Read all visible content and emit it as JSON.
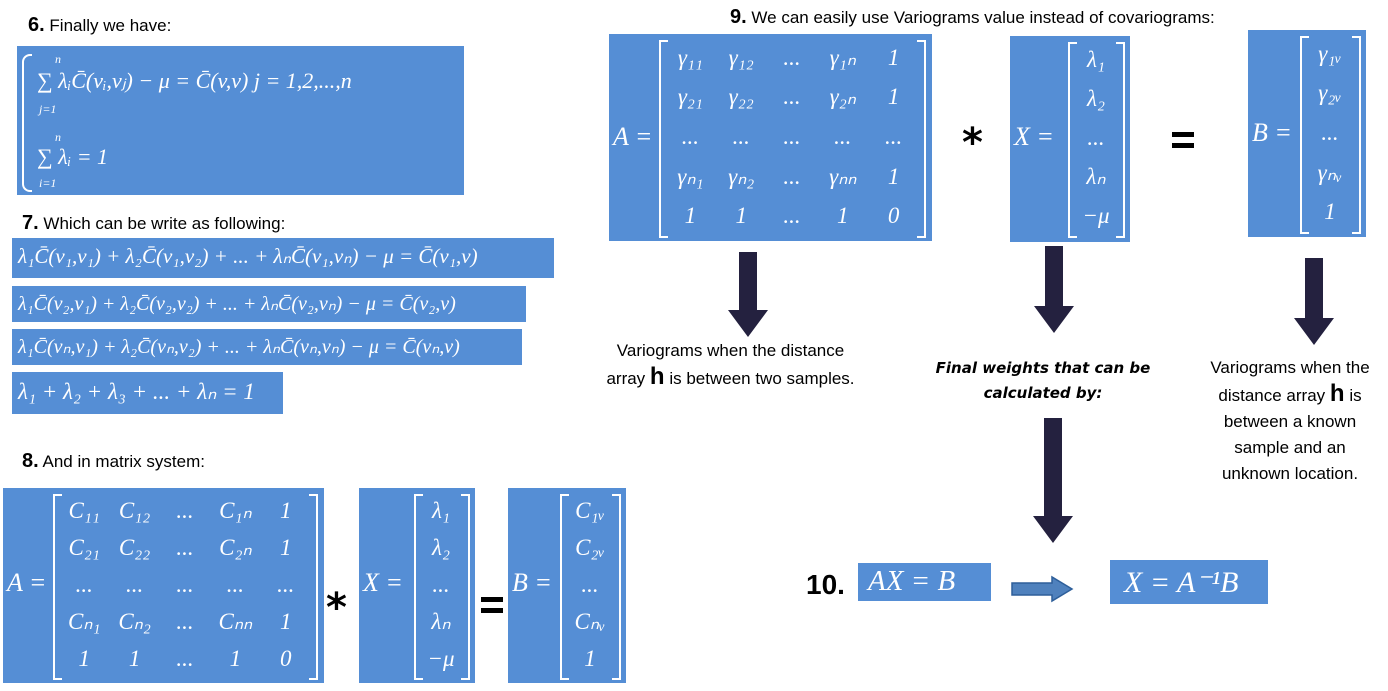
{
  "steps": {
    "s6": {
      "num": "6.",
      "text": "Finally we have:"
    },
    "s7": {
      "num": "7.",
      "text": "Which can be write as following:"
    },
    "s8": {
      "num": "8.",
      "text": "And in matrix system:"
    },
    "s9": {
      "num": "9.",
      "text": "We can easily use Variograms value instead of covariograms:"
    },
    "s10": {
      "num": "10."
    }
  },
  "eq6": {
    "line1": "∑ λᵢC̄(vᵢ,vⱼ) − μ = C̄(v,v)    j = 1,2,...,n",
    "line2": "∑ λᵢ = 1",
    "sum1_top": "n",
    "sum1_bottom": "j=1",
    "sum2_top": "n",
    "sum2_bottom": "i=1"
  },
  "eq7": [
    "λ₁C̄(v₁,v₁) + λ₂C̄(v₁,v₂) + ... + λₙC̄(v₁,vₙ) − μ = C̄(v₁,v)",
    "λ₁C̄(v₂,v₁) + λ₂C̄(v₂,v₂) + ... + λₙC̄(v₂,vₙ) − μ = C̄(v₂,v)",
    "λ₁C̄(vₙ,v₁) + λ₂C̄(vₙ,v₂) + ... + λₙC̄(vₙ,vₙ) − μ = C̄(vₙ,v)",
    "λ₁ + λ₂ + λ₃ + ... + λₙ = 1"
  ],
  "matrix8": {
    "A_label": "A =",
    "A": [
      [
        "C₁₁",
        "C₁₂",
        "...",
        "C₁ₙ",
        "1"
      ],
      [
        "C₂₁",
        "C₂₂",
        "...",
        "C₂ₙ",
        "1"
      ],
      [
        "...",
        "...",
        "...",
        "...",
        "..."
      ],
      [
        "Cₙ₁",
        "Cₙ₂",
        "...",
        "Cₙₙ",
        "1"
      ],
      [
        "1",
        "1",
        "...",
        "1",
        "0"
      ]
    ],
    "X_label": "X =",
    "X": [
      "λ₁",
      "λ₂",
      "...",
      "λₙ",
      "−μ"
    ],
    "B_label": "B =",
    "B": [
      "C₁ᵥ",
      "C₂ᵥ",
      "...",
      "Cₙᵥ",
      "1"
    ]
  },
  "matrix9": {
    "A_label": "A =",
    "A": [
      [
        "γ₁₁",
        "γ₁₂",
        "...",
        "γ₁ₙ",
        "1"
      ],
      [
        "γ₂₁",
        "γ₂₂",
        "...",
        "γ₂ₙ",
        "1"
      ],
      [
        "...",
        "...",
        "...",
        "...",
        "..."
      ],
      [
        "γₙ₁",
        "γₙ₂",
        "...",
        "γₙₙ",
        "1"
      ],
      [
        "1",
        "1",
        "...",
        "1",
        "0"
      ]
    ],
    "X_label": "X =",
    "X": [
      "λ₁",
      "λ₂",
      "...",
      "λₙ",
      "−μ"
    ],
    "B_label": "B =",
    "B": [
      "γ₁ᵥ",
      "γ₂ᵥ",
      "...",
      "γₙᵥ",
      "1"
    ]
  },
  "operators": {
    "times": "*",
    "equals": "="
  },
  "notes": {
    "left_a": "Variograms when the distance",
    "left_b": "array",
    "left_h": "h",
    "left_c": "is between two samples.",
    "mid_1": "Final weights that can be",
    "mid_2": "calculated by:",
    "right_1": "Variograms when the",
    "right_2": "distance array",
    "right_h": "h",
    "right_2b": "is",
    "right_3": "between a known",
    "right_4": "sample and an",
    "right_5": "unknown location."
  },
  "eq10": {
    "left": "AX = B",
    "right": "X = A⁻¹B"
  },
  "colors": {
    "box": "#558ed5",
    "arrow": "#24213f",
    "blue_arrow": "#4f81bd"
  }
}
